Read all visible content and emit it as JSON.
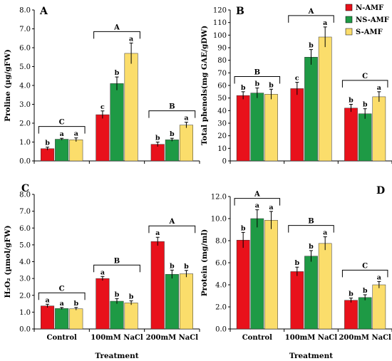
{
  "colors": {
    "N-AMF": "#e8111b",
    "NS-AMF": "#1e9a45",
    "S-AMF": "#fbdd6b"
  },
  "legend": [
    "N-AMF",
    "NS-AMF",
    "S-AMF"
  ],
  "chart_data": [
    {
      "type": "bar",
      "panel": "A",
      "ylabel": "Proline (µg/gFW)",
      "xlabel": "",
      "ylim": [
        0,
        8
      ],
      "yticks": [
        "0.0",
        "1.0",
        "2.0",
        "3.0",
        "4.0",
        "5.0",
        "6.0",
        "7.0",
        "8.0"
      ],
      "categories": [
        "Control",
        "100mM NaCl",
        "200mM NaCl"
      ],
      "series": [
        {
          "name": "N-AMF",
          "values": [
            0.65,
            2.45,
            0.88
          ],
          "errors": [
            0.08,
            0.2,
            0.12
          ],
          "sig": [
            "b",
            "c",
            "b"
          ]
        },
        {
          "name": "NS-AMF",
          "values": [
            1.15,
            4.1,
            1.12
          ],
          "errors": [
            0.05,
            0.35,
            0.08
          ],
          "sig": [
            "a",
            "b",
            "b"
          ]
        },
        {
          "name": "S-AMF",
          "values": [
            1.12,
            5.7,
            1.9
          ],
          "errors": [
            0.1,
            0.55,
            0.15
          ],
          "sig": [
            "a",
            "a",
            "a"
          ]
        }
      ],
      "groups": [
        "C",
        "A",
        "B"
      ]
    },
    {
      "type": "bar",
      "panel": "B",
      "ylabel": "Total phenols(mg GAE/gDW)",
      "xlabel": "",
      "ylim": [
        0,
        120
      ],
      "yticks": [
        "0",
        "10",
        "20",
        "30",
        "40",
        "50",
        "60",
        "70",
        "80",
        "90",
        "100",
        "110",
        "120"
      ],
      "categories": [
        "Control",
        "100mM NaCl",
        "200mM NaCl"
      ],
      "series": [
        {
          "name": "N-AMF",
          "values": [
            52,
            57.5,
            42
          ],
          "errors": [
            3,
            5,
            3
          ],
          "sig": [
            "b",
            "c",
            "b"
          ]
        },
        {
          "name": "NS-AMF",
          "values": [
            54,
            82.5,
            37.5
          ],
          "errors": [
            4,
            6,
            4
          ],
          "sig": [
            "b",
            "b",
            "b"
          ]
        },
        {
          "name": "S-AMF",
          "values": [
            53,
            98.5,
            51
          ],
          "errors": [
            4,
            8,
            4
          ],
          "sig": [
            "b",
            "a",
            "a"
          ]
        }
      ],
      "groups": [
        "B",
        "A",
        "C"
      ]
    },
    {
      "type": "bar",
      "panel": "C",
      "ylabel": "H₂O₂ (µmol/gFW)",
      "xlabel": "Treatment",
      "ylim": [
        0,
        8
      ],
      "yticks": [
        "0.0",
        "1.0",
        "2.0",
        "3.0",
        "4.0",
        "5.0",
        "6.0",
        "7.0",
        "8.0"
      ],
      "categories": [
        "Control",
        "100mM NaCl",
        "200mM NaCl"
      ],
      "series": [
        {
          "name": "N-AMF",
          "values": [
            1.37,
            3.0,
            5.2
          ],
          "errors": [
            0.1,
            0.12,
            0.25
          ],
          "sig": [
            "a",
            "a",
            "a"
          ]
        },
        {
          "name": "NS-AMF",
          "values": [
            1.22,
            1.65,
            3.25
          ],
          "errors": [
            0.06,
            0.15,
            0.25
          ],
          "sig": [
            "a",
            "b",
            "b"
          ]
        },
        {
          "name": "S-AMF",
          "values": [
            1.2,
            1.55,
            3.28
          ],
          "errors": [
            0.08,
            0.12,
            0.2
          ],
          "sig": [
            "b",
            "b",
            "b"
          ]
        }
      ],
      "groups": [
        "C",
        "B",
        "A"
      ]
    },
    {
      "type": "bar",
      "panel": "D",
      "ylabel": "Protein (mg/ml)",
      "xlabel": "Treatment",
      "ylim": [
        0,
        12
      ],
      "yticks": [
        "0.0",
        "2.0",
        "4.0",
        "6.0",
        "8.0",
        "10.0",
        "12.0"
      ],
      "categories": [
        "Control",
        "100mM NaCl",
        "200mM NaCl"
      ],
      "series": [
        {
          "name": "N-AMF",
          "values": [
            8.05,
            5.2,
            2.6
          ],
          "errors": [
            0.7,
            0.4,
            0.2
          ],
          "sig": [
            "b",
            "b",
            "b"
          ]
        },
        {
          "name": "NS-AMF",
          "values": [
            10.0,
            6.6,
            2.85
          ],
          "errors": [
            0.8,
            0.5,
            0.25
          ],
          "sig": [
            "a",
            "b",
            "b"
          ]
        },
        {
          "name": "S-AMF",
          "values": [
            9.85,
            7.75,
            4.0
          ],
          "errors": [
            0.8,
            0.6,
            0.3
          ],
          "sig": [
            "a",
            "a",
            "a"
          ]
        }
      ],
      "groups": [
        "A",
        "B",
        "C"
      ]
    }
  ]
}
